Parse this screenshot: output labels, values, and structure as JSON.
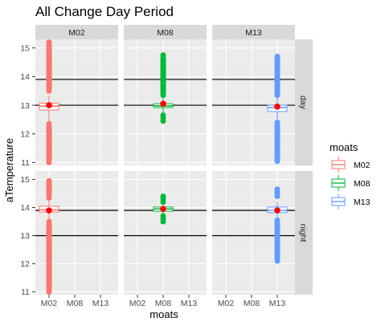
{
  "chart_data": {
    "type": "boxplot",
    "title": "All Change Day Period",
    "xlabel": "moats",
    "ylabel": "aTemperature",
    "categories": [
      "M02",
      "M08",
      "M13"
    ],
    "panels_columns": [
      "M02",
      "M08",
      "M13"
    ],
    "panels_rows": [
      "day",
      "night"
    ],
    "ylim": [
      10.9,
      15.3
    ],
    "yticks": [
      11,
      12,
      13,
      14,
      15
    ],
    "reference_lines": [
      13,
      13.9
    ],
    "legend": {
      "title": "moats",
      "position": "right",
      "entries": [
        "M02",
        "M08",
        "M13"
      ]
    },
    "colors": {
      "M02": "#F8766D",
      "M08": "#00BA38",
      "M13": "#619CFF",
      "mean_point": "#FF0000",
      "panel_bg": "#EBEBEB",
      "strip_bg": "#D9D9D9"
    },
    "panels": [
      {
        "column": "M02",
        "row": "day",
        "category": "M02",
        "q1": 12.83,
        "median": 12.97,
        "q3": 13.07,
        "whisker_low": 12.4,
        "whisker_high": 13.35,
        "mean": 13.0,
        "outliers_low_range": [
          11.0,
          12.35
        ],
        "outliers_high_range": [
          13.5,
          15.2
        ]
      },
      {
        "column": "M08",
        "row": "day",
        "category": "M08",
        "q1": 12.92,
        "median": 12.98,
        "q3": 13.05,
        "whisker_low": 12.7,
        "whisker_high": 13.3,
        "mean": 13.05,
        "outliers_low_range": [
          12.45,
          12.65
        ],
        "outliers_high_range": [
          13.35,
          14.75
        ]
      },
      {
        "column": "M13",
        "row": "day",
        "category": "M13",
        "q1": 12.78,
        "median": 12.92,
        "q3": 13.0,
        "whisker_low": 12.45,
        "whisker_high": 13.3,
        "mean": 12.95,
        "outliers_low_range": [
          11.05,
          12.4
        ],
        "outliers_high_range": [
          13.35,
          14.7
        ]
      },
      {
        "column": "M02",
        "row": "night",
        "category": "M02",
        "q1": 13.84,
        "median": 13.92,
        "q3": 14.05,
        "whisker_low": 13.55,
        "whisker_high": 14.3,
        "mean": 13.9,
        "outliers_low_range": [
          11.0,
          13.5
        ],
        "outliers_high_range": [
          14.35,
          14.95
        ]
      },
      {
        "column": "M08",
        "row": "night",
        "category": "M08",
        "q1": 13.87,
        "median": 13.95,
        "q3": 14.02,
        "whisker_low": 13.72,
        "whisker_high": 14.18,
        "mean": 13.95,
        "outliers_low_range": [
          13.5,
          13.7
        ],
        "outliers_high_range": [
          14.2,
          14.4
        ]
      },
      {
        "column": "M13",
        "row": "night",
        "category": "M13",
        "q1": 13.82,
        "median": 13.9,
        "q3": 14.02,
        "whisker_low": 13.6,
        "whisker_high": 14.2,
        "mean": 13.9,
        "outliers_low_range": [
          12.1,
          13.55
        ],
        "outliers_high_range": [
          14.4,
          14.65
        ]
      }
    ]
  }
}
